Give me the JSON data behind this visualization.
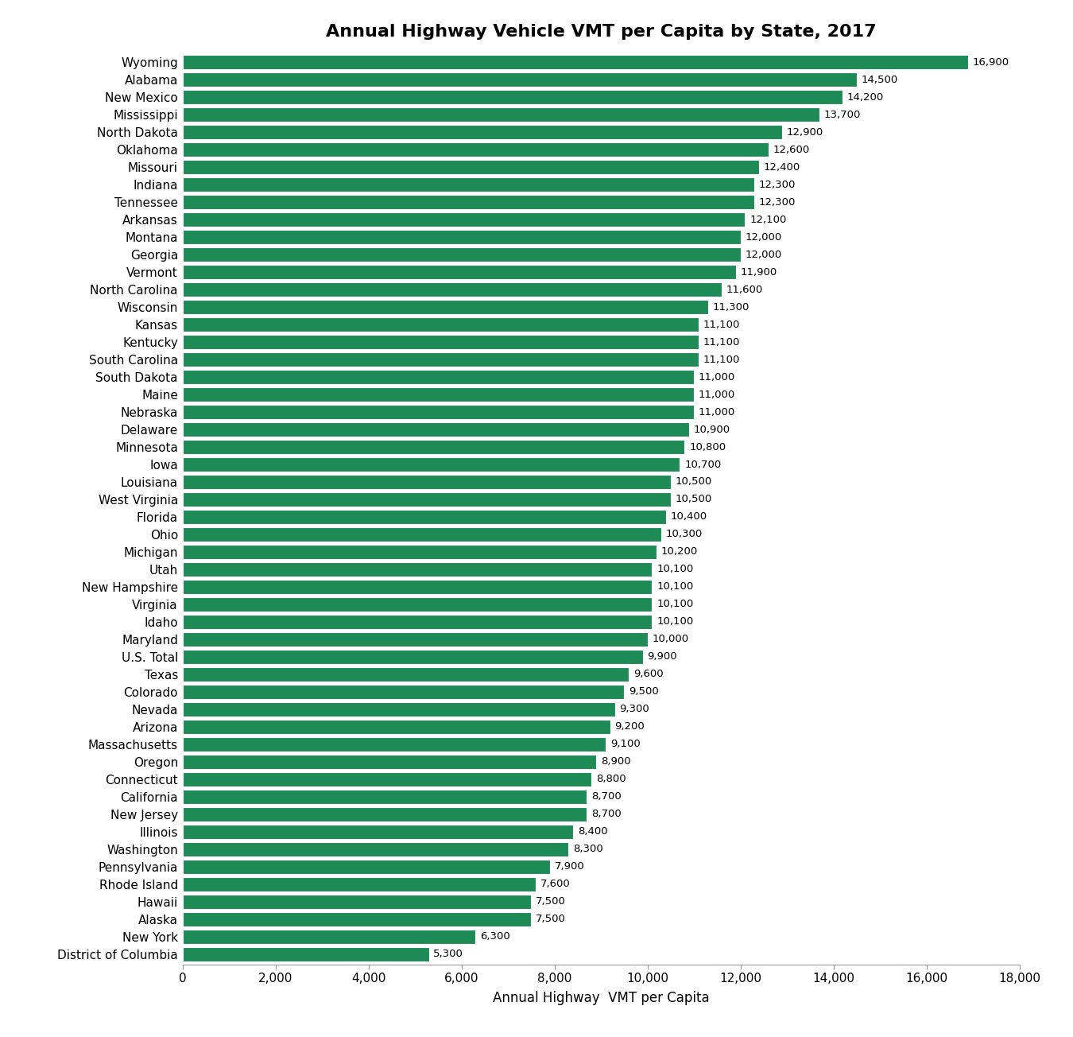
{
  "title": "Annual Highway Vehicle VMT per Capita by State, 2017",
  "xlabel": "Annual Highway  VMT per Capita",
  "states": [
    "Wyoming",
    "Alabama",
    "New Mexico",
    "Mississippi",
    "North Dakota",
    "Oklahoma",
    "Missouri",
    "Indiana",
    "Tennessee",
    "Arkansas",
    "Montana",
    "Georgia",
    "Vermont",
    "North Carolina",
    "Wisconsin",
    "Kansas",
    "Kentucky",
    "South Carolina",
    "South Dakota",
    "Maine",
    "Nebraska",
    "Delaware",
    "Minnesota",
    "Iowa",
    "Louisiana",
    "West Virginia",
    "Florida",
    "Ohio",
    "Michigan",
    "Utah",
    "New Hampshire",
    "Virginia",
    "Idaho",
    "Maryland",
    "U.S. Total",
    "Texas",
    "Colorado",
    "Nevada",
    "Arizona",
    "Massachusetts",
    "Oregon",
    "Connecticut",
    "California",
    "New Jersey",
    "Illinois",
    "Washington",
    "Pennsylvania",
    "Rhode Island",
    "Hawaii",
    "Alaska",
    "New York",
    "District of Columbia"
  ],
  "values": [
    16900,
    14500,
    14200,
    13700,
    12900,
    12600,
    12400,
    12300,
    12300,
    12100,
    12000,
    12000,
    11900,
    11600,
    11300,
    11100,
    11100,
    11100,
    11000,
    11000,
    11000,
    10900,
    10800,
    10700,
    10500,
    10500,
    10400,
    10300,
    10200,
    10100,
    10100,
    10100,
    10100,
    10000,
    9900,
    9600,
    9500,
    9300,
    9200,
    9100,
    8900,
    8800,
    8700,
    8700,
    8400,
    8300,
    7900,
    7600,
    7500,
    7500,
    6300,
    5300
  ],
  "bar_color": "#1e8a56",
  "background_color": "#ffffff",
  "xlim": [
    0,
    18000
  ],
  "xticks": [
    0,
    2000,
    4000,
    6000,
    8000,
    10000,
    12000,
    14000,
    16000,
    18000
  ],
  "xtick_labels": [
    "0",
    "2,000",
    "4,000",
    "6,000",
    "8,000",
    "10,000",
    "12,000",
    "14,000",
    "16,000",
    "18,000"
  ],
  "title_fontsize": 16,
  "label_fontsize": 12,
  "ytick_fontsize": 11,
  "xtick_fontsize": 11,
  "bar_label_fontsize": 9.5,
  "bar_height": 0.82
}
